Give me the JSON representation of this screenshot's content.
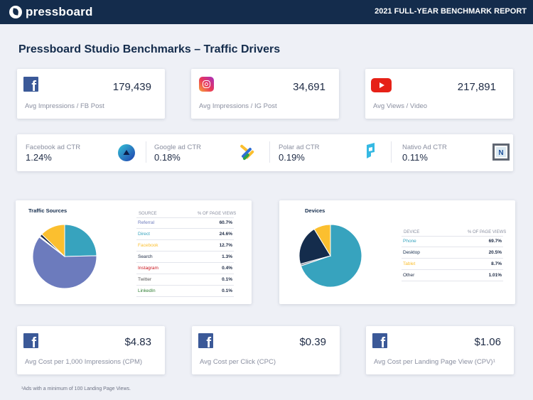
{
  "header": {
    "brand": "pressboard",
    "report_title": "2021 FULL-YEAR BENCHMARK REPORT"
  },
  "page_title": "Pressboard Studio Benchmarks – Traffic Drivers",
  "top_metrics": [
    {
      "icon": "facebook-icon",
      "value": "179,439",
      "label": "Avg Impressions / FB Post"
    },
    {
      "icon": "instagram-icon",
      "value": "34,691",
      "label": "Avg Impressions / IG Post"
    },
    {
      "icon": "youtube-icon",
      "value": "217,891",
      "label": "Avg Views / Video"
    }
  ],
  "ctr": [
    {
      "label": "Facebook ad CTR",
      "value": "1.24%",
      "icon": "triangle-logo-icon"
    },
    {
      "label": "Google ad CTR",
      "value": "0.18%",
      "icon": "google-ads-icon"
    },
    {
      "label": "Polar ad CTR",
      "value": "0.19%",
      "icon": "polar-logo-icon"
    },
    {
      "label": "Nativo Ad CTR",
      "value": "0.11%",
      "icon": "nativo-logo-icon"
    }
  ],
  "chart_data": [
    {
      "type": "pie",
      "title": "Traffic Sources",
      "col_label": "SOURCE",
      "col_value": "% OF PAGE VIEWS",
      "categories": [
        "Referral",
        "Direct",
        "Facebook",
        "Search",
        "Instagram",
        "Twitter",
        "LinkedIn"
      ],
      "labels": [
        "60.7%",
        "24.6%",
        "12.7%",
        "1.3%",
        "0.4%",
        "0.1%",
        "0.1%"
      ],
      "values": [
        60.7,
        24.6,
        12.7,
        1.3,
        0.4,
        0.1,
        0.1
      ],
      "colors": [
        "#6c7bbd",
        "#37a3be",
        "#fbbf2f",
        "#1e2b45",
        "#c9151e",
        "#555555",
        "#2e7d32"
      ],
      "start": "Direct",
      "slice_order": [
        "Direct",
        "Referral",
        "LinkedIn",
        "Twitter",
        "Instagram",
        "Search",
        "Facebook"
      ]
    },
    {
      "type": "pie",
      "title": "Devices",
      "col_label": "DEVICE",
      "col_value": "% OF PAGE VIEWS",
      "categories": [
        "Phone",
        "Desktop",
        "Tablet",
        "Other"
      ],
      "labels": [
        "69.7%",
        "20.5%",
        "8.7%",
        "1.01%"
      ],
      "values": [
        69.7,
        20.5,
        8.7,
        1.01
      ],
      "colors": [
        "#37a3be",
        "#142c4c",
        "#fbbf2f",
        "#8a8fa0"
      ],
      "start": "Phone",
      "slice_order": [
        "Phone",
        "Other",
        "Desktop",
        "Tablet"
      ]
    }
  ],
  "cost_metrics": [
    {
      "icon": "facebook-icon",
      "value": "$4.83",
      "label": "Avg Cost per 1,000 Impressions (CPM)"
    },
    {
      "icon": "facebook-icon",
      "value": "$0.39",
      "label": "Avg Cost per Click (CPC)"
    },
    {
      "icon": "facebook-icon",
      "value": "$1.06",
      "label": "Avg Cost per Landing Page View (CPV)¹"
    }
  ],
  "footnote": "¹Ads with a minimum of 100 Landing Page Views.",
  "colors": {
    "navy": "#142c4c",
    "teal": "#37a3be",
    "yellow": "#fbbf2f",
    "periwinkle": "#6c7bbd"
  }
}
